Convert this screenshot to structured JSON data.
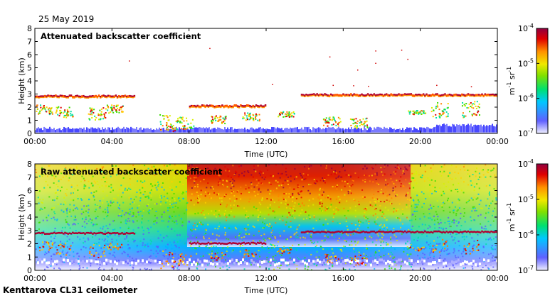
{
  "date": "25 May 2019",
  "site": "Kenttarova CL31 ceilometer",
  "chart_data": [
    {
      "type": "heatmap",
      "title": "Attenuated backscatter coefficient",
      "xlabel": "Time (UTC)",
      "ylabel": "Height (km)",
      "xticks": [
        "00:00",
        "04:00",
        "08:00",
        "12:00",
        "16:00",
        "20:00",
        "00:00"
      ],
      "yticks": [
        "0",
        "1",
        "2",
        "3",
        "4",
        "5",
        "6",
        "7",
        "8"
      ],
      "ylim": [
        0,
        8
      ],
      "xlim_hours": [
        0,
        24
      ],
      "colorbar": {
        "scale": "log",
        "range": [
          1e-07,
          0.0001
        ],
        "unit": "m-1 sr-1",
        "ticks": [
          "10-7",
          "10-6",
          "10-5",
          "10-4"
        ]
      },
      "cloud_layers": [
        {
          "from_h": 0.0,
          "to_h": 5.2,
          "height_km": 2.85
        },
        {
          "from_h": 13.8,
          "to_h": 24.0,
          "height_km": 2.95
        },
        {
          "from_h": 8.0,
          "to_h": 12.0,
          "height_km": 2.1
        }
      ]
    },
    {
      "type": "heatmap",
      "title": "Raw attenuated backscatter coefficient",
      "xlabel": "Time (UTC)",
      "ylabel": "Height (km)",
      "xticks": [
        "00:00",
        "04:00",
        "08:00",
        "12:00",
        "16:00",
        "20:00",
        "00:00"
      ],
      "yticks": [
        "0",
        "1",
        "2",
        "3",
        "4",
        "5",
        "6",
        "7",
        "8"
      ],
      "ylim": [
        0,
        8
      ],
      "xlim_hours": [
        0,
        24
      ],
      "colorbar": {
        "scale": "log",
        "range": [
          1e-07,
          0.0001
        ],
        "unit": "m-1 sr-1",
        "ticks": [
          "10-7",
          "10-6",
          "10-5",
          "10-4"
        ]
      }
    }
  ],
  "colors": {
    "scale": [
      "#e6e6ff",
      "#5a5aff",
      "#00b4ff",
      "#00e0a0",
      "#3cdc00",
      "#d8f000",
      "#ffd000",
      "#ff8000",
      "#e00000",
      "#8c0040"
    ],
    "ground_blue": "#4a4aff",
    "cloud_red": "#b00030"
  }
}
